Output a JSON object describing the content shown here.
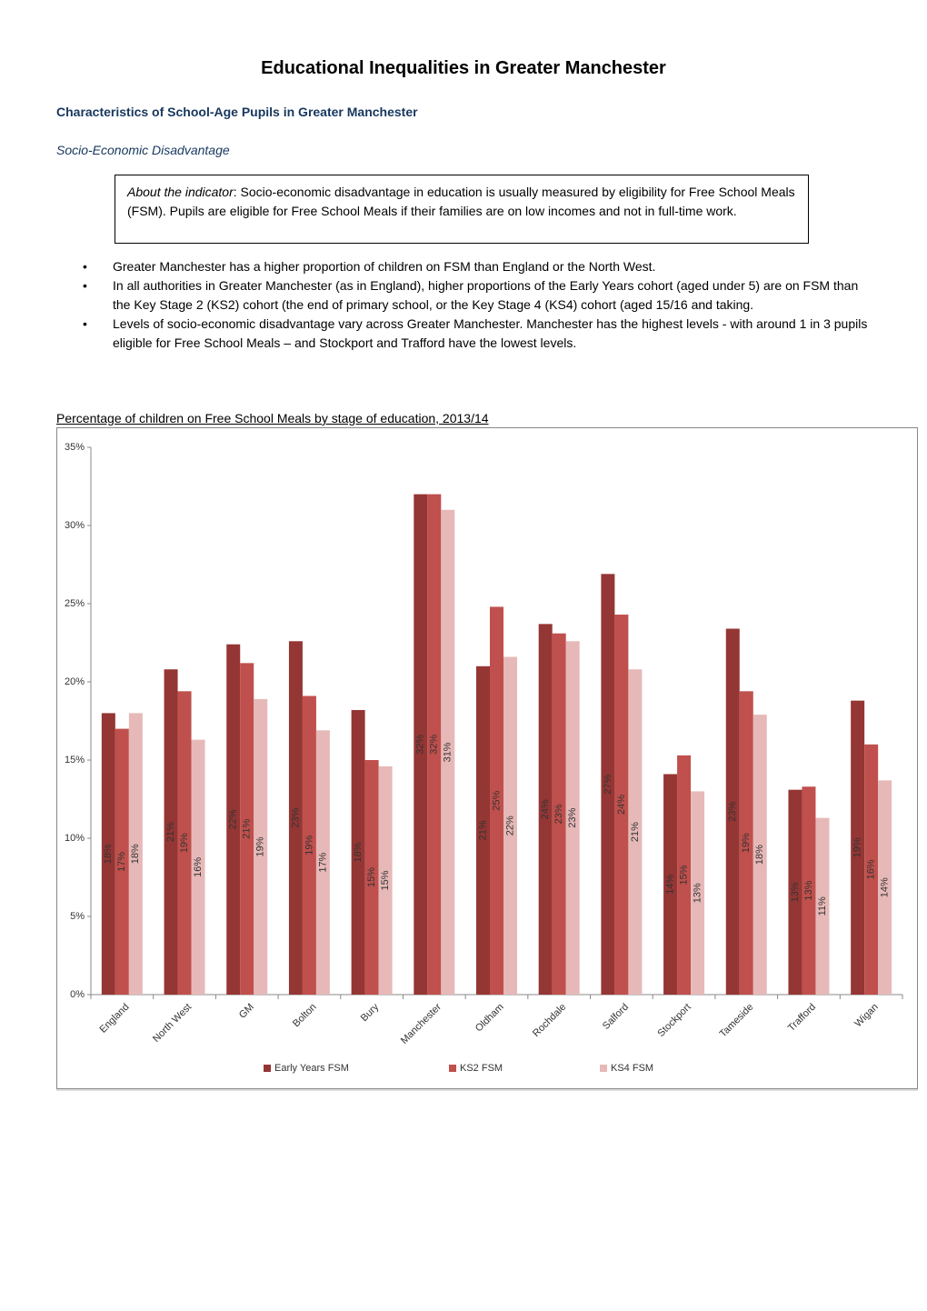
{
  "title": "Educational Inequalities in Greater Manchester",
  "heading": "Characteristics of School-Age Pupils in Greater Manchester",
  "section": "Socio-Economic Disadvantage",
  "about": {
    "label": "About the indicator",
    "text": ": Socio-economic disadvantage in education is usually measured by eligibility for Free School Meals (FSM).  Pupils are eligible for Free School Meals if their families are on low incomes and not in full-time work."
  },
  "bullets": [
    "Greater Manchester has a higher proportion of children on FSM than England or the North West.",
    "In all authorities in Greater Manchester (as in England), higher proportions of the Early Years cohort (aged under 5) are on FSM than the Key Stage 2 (KS2) cohort (the end of primary school, or the Key Stage 4 (KS4) cohort (aged 15/16 and taking.",
    "Levels of socio-economic disadvantage vary across Greater Manchester. Manchester has the highest levels - with around 1 in 3 pupils eligible for Free School Meals – and Stockport and Trafford have the lowest levels."
  ],
  "chart_data": {
    "type": "bar",
    "title": "Percentage of children on Free School Meals by stage of education, 2013/14",
    "categories": [
      "England",
      "North West",
      "GM",
      "Bolton",
      "Bury",
      "Manchester",
      "Oldham",
      "Rochdale",
      "Salford",
      "Stockport",
      "Tameside",
      "Trafford",
      "Wigan"
    ],
    "series": [
      {
        "name": "Early Years FSM",
        "color": "#943634",
        "values": [
          18.0,
          20.8,
          22.4,
          22.6,
          18.2,
          32.0,
          21.0,
          23.7,
          26.9,
          14.1,
          23.4,
          13.1,
          18.8
        ],
        "value_labels": [
          "18%",
          "21%",
          "22%",
          "23%",
          "18%",
          "32%",
          "21%",
          "24%",
          "27%",
          "14%",
          "23%",
          "13%",
          "19%"
        ]
      },
      {
        "name": "KS2 FSM",
        "color": "#c0504d",
        "values": [
          17.0,
          19.4,
          21.2,
          19.1,
          15.0,
          32.0,
          24.8,
          23.1,
          24.3,
          15.3,
          19.4,
          13.3,
          16.0
        ],
        "value_labels": [
          "17%",
          "19%",
          "21%",
          "19%",
          "15%",
          "32%",
          "25%",
          "23%",
          "24%",
          "15%",
          "19%",
          "13%",
          "16%"
        ]
      },
      {
        "name": "KS4 FSM",
        "color": "#e6b9b8",
        "values": [
          18.0,
          16.3,
          18.9,
          16.9,
          14.6,
          31.0,
          21.6,
          22.6,
          20.8,
          13.0,
          17.9,
          11.3,
          13.7
        ],
        "value_labels": [
          "18%",
          "16%",
          "19%",
          "17%",
          "15%",
          "31%",
          "22%",
          "23%",
          "21%",
          "13%",
          "18%",
          "11%",
          "14%"
        ]
      }
    ],
    "ylim": [
      0,
      35
    ],
    "yticks": [
      {
        "value": 0,
        "label": "0%"
      },
      {
        "value": 5,
        "label": "5%"
      },
      {
        "value": 10,
        "label": "10%"
      },
      {
        "value": 15,
        "label": "15%"
      },
      {
        "value": 20,
        "label": "20%"
      },
      {
        "value": 25,
        "label": "25%"
      },
      {
        "value": 30,
        "label": "30%"
      },
      {
        "value": 35,
        "label": "35%"
      }
    ],
    "grid": false,
    "legend": "bottom"
  }
}
